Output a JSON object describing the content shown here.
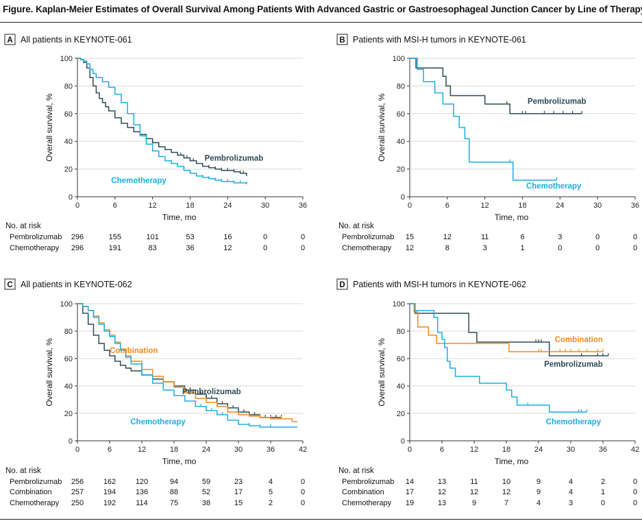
{
  "figure_title": "Figure. Kaplan-Meier Estimates of Overall Survival Among Patients With Advanced Gastric or Gastroesophageal Junction Cancer by Line of Therapy",
  "colors": {
    "Pembrolizumab": "#2d4a55",
    "Chemotherapy": "#1aaee0",
    "Combination": "#ef8a1f",
    "axis": "#333333"
  },
  "shared": {
    "ylabel": "Overall survival, %",
    "xlabel": "Time, mo",
    "at_risk_label": "No. at risk"
  },
  "chart_data": [
    {
      "type": "line",
      "panel": "A",
      "panel_title": "All patients in KEYNOTE-061",
      "xlabel": "Time, mo",
      "ylabel": "Overall survival, %",
      "xlim": [
        0,
        36
      ],
      "ylim": [
        0,
        100
      ],
      "xticks": [
        0,
        6,
        12,
        18,
        24,
        30,
        36
      ],
      "yticks": [
        0,
        20,
        40,
        60,
        80,
        100
      ],
      "series": [
        {
          "name": "Pembrolizumab",
          "x": [
            0,
            0.5,
            1,
            1.5,
            2,
            2.5,
            3,
            3.5,
            4,
            4.5,
            5,
            6,
            7,
            8,
            9,
            10,
            11,
            12,
            13,
            14,
            15,
            16,
            17,
            18,
            19,
            20,
            21,
            22,
            23,
            24,
            25,
            26,
            27
          ],
          "y": [
            100,
            99,
            97,
            93,
            86,
            80,
            75,
            71,
            68,
            65,
            62,
            57,
            53,
            50,
            47,
            45,
            42,
            39,
            36,
            34,
            32,
            30,
            28,
            26,
            24,
            22,
            21,
            20,
            19,
            19,
            18,
            17,
            15
          ],
          "censor_x": [
            16,
            16.5,
            17,
            17.5,
            18,
            18.5,
            19,
            20,
            21,
            22,
            23,
            24,
            25,
            26,
            26.5,
            27
          ]
        },
        {
          "name": "Chemotherapy",
          "x": [
            0,
            0.5,
            1,
            1.5,
            2,
            2.5,
            3,
            4,
            5,
            6,
            7,
            8,
            9,
            10,
            11,
            12,
            13,
            14,
            15,
            16,
            17,
            18,
            19,
            20,
            21,
            22,
            23,
            24,
            25,
            26,
            27
          ],
          "y": [
            100,
            99,
            98,
            96,
            92,
            89,
            86,
            83,
            79,
            74,
            68,
            60,
            52,
            44,
            38,
            33,
            29,
            26,
            24,
            22,
            19,
            17,
            15,
            14,
            13,
            12,
            11,
            11,
            10,
            10,
            9
          ],
          "censor_x": [
            16,
            17,
            18,
            19,
            20,
            21,
            22,
            23,
            24,
            25,
            26,
            27
          ]
        }
      ],
      "labels": [
        {
          "series": "Pembrolizumab",
          "x": 25,
          "y": 26
        },
        {
          "series": "Chemotherapy",
          "x": 9.8,
          "y": 10
        }
      ],
      "at_risk": {
        "times": [
          0,
          6,
          12,
          18,
          24,
          30,
          36
        ],
        "rows": [
          {
            "name": "Pembrolizumab",
            "values": [
              296,
              155,
              101,
              53,
              16,
              0,
              0
            ]
          },
          {
            "name": "Chemotherapy",
            "values": [
              296,
              191,
              83,
              36,
              12,
              0,
              0
            ]
          }
        ]
      }
    },
    {
      "type": "line",
      "panel": "B",
      "panel_title": "Patients with MSI-H tumors in KEYNOTE-061",
      "xlabel": "Time, mo",
      "ylabel": "Overall survival, %",
      "xlim": [
        0,
        36
      ],
      "ylim": [
        0,
        100
      ],
      "xticks": [
        0,
        6,
        12,
        18,
        24,
        30,
        36
      ],
      "yticks": [
        0,
        20,
        40,
        60,
        80,
        100
      ],
      "series": [
        {
          "name": "Pembrolizumab",
          "x": [
            0,
            1,
            5.3,
            5.8,
            6.5,
            12,
            16,
            16.5,
            27.5
          ],
          "y": [
            100,
            93,
            87,
            80,
            73,
            67,
            60,
            60,
            60
          ],
          "censor_x": [
            15.5,
            18,
            18.5,
            21.5,
            23,
            24.5,
            26,
            27.5
          ]
        },
        {
          "name": "Chemotherapy",
          "x": [
            0,
            1.2,
            2.2,
            4,
            5.3,
            7,
            7.9,
            8.8,
            9.5,
            16.5,
            23.5
          ],
          "y": [
            100,
            92,
            83,
            75,
            67,
            58,
            50,
            42,
            25,
            12,
            12
          ],
          "censor_x": [
            16,
            23.5
          ]
        }
      ],
      "labels": [
        {
          "series": "Pembrolizumab",
          "x": 23.5,
          "y": 67
        },
        {
          "series": "Chemotherapy",
          "x": 23,
          "y": 6
        }
      ],
      "at_risk": {
        "times": [
          0,
          6,
          12,
          18,
          24,
          30,
          36
        ],
        "rows": [
          {
            "name": "Pembrolizumab",
            "values": [
              15,
              12,
              11,
              6,
              3,
              0,
              0
            ]
          },
          {
            "name": "Chemotherapy",
            "values": [
              12,
              8,
              3,
              1,
              0,
              0,
              0
            ]
          }
        ]
      }
    },
    {
      "type": "line",
      "panel": "C",
      "panel_title": "All patients in KEYNOTE-062",
      "xlabel": "Time, mo",
      "ylabel": "Overall survival, %",
      "xlim": [
        0,
        42
      ],
      "ylim": [
        0,
        100
      ],
      "xticks": [
        0,
        6,
        12,
        18,
        24,
        30,
        36,
        42
      ],
      "yticks": [
        0,
        20,
        40,
        60,
        80,
        100
      ],
      "series": [
        {
          "name": "Pembrolizumab",
          "x": [
            0,
            1,
            2,
            3,
            4,
            5,
            6,
            7,
            8,
            9,
            10,
            12,
            14,
            16,
            18,
            20,
            22,
            24,
            26,
            28,
            30,
            32,
            34,
            36,
            38
          ],
          "y": [
            100,
            93,
            85,
            77,
            71,
            66,
            62,
            58,
            55,
            53,
            51,
            48,
            45,
            43,
            40,
            37,
            34,
            31,
            27,
            24,
            21,
            19,
            17,
            17,
            17
          ],
          "censor_x": [
            21,
            22,
            23,
            24,
            25,
            26,
            27,
            28,
            29,
            30,
            31,
            32,
            33,
            34,
            35,
            36,
            37,
            38
          ]
        },
        {
          "name": "Combination",
          "x": [
            0,
            1,
            2,
            3,
            4,
            5,
            6,
            7,
            8,
            9,
            10,
            12,
            14,
            16,
            18,
            20,
            22,
            24,
            26,
            28,
            30,
            32,
            34,
            36,
            38,
            40,
            41
          ],
          "y": [
            100,
            98,
            95,
            91,
            86,
            81,
            77,
            72,
            67,
            62,
            58,
            52,
            47,
            43,
            39,
            35,
            31,
            28,
            25,
            21,
            19,
            18,
            17,
            16,
            16,
            14,
            14
          ],
          "censor_x": [
            24,
            26,
            28,
            30,
            32,
            34,
            36,
            38,
            40
          ]
        },
        {
          "name": "Chemotherapy",
          "x": [
            0,
            1,
            2,
            3,
            4,
            5,
            6,
            7,
            8,
            9,
            10,
            12,
            14,
            16,
            18,
            20,
            22,
            24,
            26,
            28,
            30,
            32,
            34,
            36,
            38,
            40,
            41
          ],
          "y": [
            100,
            98,
            95,
            90,
            85,
            80,
            76,
            71,
            66,
            61,
            56,
            48,
            42,
            37,
            33,
            29,
            25,
            22,
            19,
            15,
            12,
            11,
            10,
            10,
            10,
            10,
            10
          ],
          "censor_x": [
            22,
            23,
            24,
            25,
            26,
            27,
            28,
            30,
            32,
            34,
            36
          ]
        }
      ],
      "labels": [
        {
          "series": "Combination",
          "x": 10.5,
          "y": 64
        },
        {
          "series": "Pembrolizumab",
          "x": 25,
          "y": 34
        },
        {
          "series": "Chemotherapy",
          "x": 15,
          "y": 12
        }
      ],
      "at_risk": {
        "times": [
          0,
          6,
          12,
          18,
          24,
          30,
          36,
          42
        ],
        "rows": [
          {
            "name": "Pembrolizumab",
            "values": [
              256,
              162,
              120,
              94,
              59,
              23,
              4,
              0
            ]
          },
          {
            "name": "Combination",
            "values": [
              257,
              194,
              136,
              88,
              52,
              17,
              5,
              0
            ]
          },
          {
            "name": "Chemotherapy",
            "values": [
              250,
              192,
              114,
              75,
              38,
              15,
              2,
              0
            ]
          }
        ]
      }
    },
    {
      "type": "line",
      "panel": "D",
      "panel_title": "Patients with MSI-H tumors in KEYNOTE-062",
      "xlabel": "Time, mo",
      "ylabel": "Overall survival, %",
      "xlim": [
        0,
        42
      ],
      "ylim": [
        0,
        100
      ],
      "xticks": [
        0,
        6,
        12,
        18,
        24,
        30,
        36,
        42
      ],
      "yticks": [
        0,
        20,
        40,
        60,
        80,
        100
      ],
      "series": [
        {
          "name": "Pembrolizumab",
          "x": [
            0,
            1,
            3,
            11,
            12.5,
            26,
            37
          ],
          "y": [
            100,
            93,
            93,
            79,
            72,
            62,
            62
          ],
          "censor_x": [
            23.5,
            24,
            24.5,
            32,
            35,
            36,
            37
          ]
        },
        {
          "name": "Combination",
          "x": [
            0,
            0.8,
            1.5,
            3.5,
            5,
            6,
            18.5,
            36
          ],
          "y": [
            100,
            94,
            83,
            77,
            71,
            71,
            65,
            65
          ],
          "censor_x": [
            24,
            24.5,
            28,
            29,
            30,
            31.5,
            33,
            35,
            36
          ]
        },
        {
          "name": "Chemotherapy",
          "x": [
            0,
            1,
            1.5,
            4.5,
            5.2,
            6,
            6.5,
            7,
            7.5,
            8.5,
            9.5,
            13,
            18,
            19,
            20,
            26,
            33
          ],
          "y": [
            100,
            95,
            95,
            90,
            79,
            74,
            68,
            58,
            53,
            47,
            47,
            42,
            37,
            32,
            26,
            21,
            21
          ],
          "censor_x": [
            22,
            31.5,
            32,
            33
          ]
        }
      ],
      "labels": [
        {
          "series": "Combination",
          "x": 31.5,
          "y": 72
        },
        {
          "series": "Pembrolizumab",
          "x": 30.5,
          "y": 54
        },
        {
          "series": "Chemotherapy",
          "x": 30.5,
          "y": 12
        }
      ],
      "at_risk": {
        "times": [
          0,
          6,
          12,
          18,
          24,
          30,
          36,
          42
        ],
        "rows": [
          {
            "name": "Pembrolizumab",
            "values": [
              14,
              13,
              11,
              10,
              9,
              4,
              2,
              0
            ]
          },
          {
            "name": "Combination",
            "values": [
              17,
              12,
              12,
              12,
              9,
              4,
              1,
              0
            ]
          },
          {
            "name": "Chemotherapy",
            "values": [
              19,
              13,
              9,
              7,
              4,
              3,
              0,
              0
            ]
          }
        ]
      }
    }
  ]
}
